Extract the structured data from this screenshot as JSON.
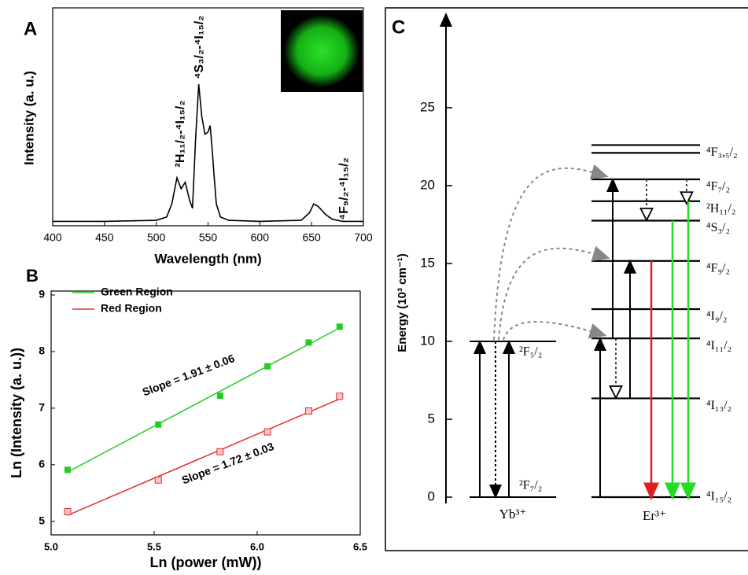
{
  "chart_data": [
    {
      "type": "line",
      "panel": "A",
      "x_label": "Wavelength (nm)",
      "y_label": "Intensity (a. u.)",
      "x": [
        400,
        450,
        500,
        510,
        515,
        520,
        524,
        528,
        532,
        535,
        538,
        541,
        544,
        547,
        550,
        552,
        554,
        556,
        558,
        562,
        570,
        600,
        640,
        648,
        652,
        656,
        660,
        664,
        670,
        680,
        700
      ],
      "values": [
        2,
        2,
        2.5,
        4,
        10,
        22,
        17,
        20,
        12,
        8,
        40,
        65,
        50,
        42,
        43,
        46,
        35,
        22,
        10,
        4,
        2.5,
        2,
        2.5,
        6,
        10,
        9,
        7,
        5,
        3,
        2,
        2
      ],
      "color": "#000000",
      "xlim": [
        400,
        700
      ],
      "xticks": [
        400,
        450,
        500,
        550,
        600,
        650,
        700
      ],
      "ylim": [
        0,
        100
      ],
      "annotations": [
        "²H₁₁/₂-⁴I₁₅/₂",
        "⁴S₃/₂-⁴I₁₅/₂",
        "⁴F₉/₂-⁴I₁₅/₂"
      ]
    },
    {
      "type": "scatter",
      "panel": "B",
      "x_label": "Ln (power (mW))",
      "y_label": "Ln (Intensity (a. u.))",
      "series": [
        {
          "name": "Green Region",
          "color": "#22cc22",
          "x": [
            5.08,
            5.52,
            5.82,
            6.05,
            6.25,
            6.4
          ],
          "values": [
            5.91,
            6.71,
            7.22,
            7.74,
            8.16,
            8.44
          ]
        },
        {
          "name": "Red Region",
          "color": "#e03030",
          "x": [
            5.08,
            5.52,
            5.82,
            6.05,
            6.25,
            6.4
          ],
          "values": [
            5.17,
            5.73,
            6.23,
            6.58,
            6.95,
            7.21
          ]
        }
      ],
      "annotations": [
        "Slope = 1.91 ± 0.06",
        "Slope = 1.72 ± 0.03"
      ],
      "xlim": [
        5.0,
        6.5
      ],
      "xticks": [
        {
          "value": 5,
          "label": "5.0"
        },
        5.5,
        {
          "value": 6,
          "label": "6.0"
        },
        6.5
      ],
      "ylim": [
        4.76,
        9.07
      ],
      "yticks": [
        5,
        6,
        7,
        8,
        9
      ],
      "legend": "top-left"
    },
    {
      "type": "energy_levels",
      "panel": "C",
      "y_label": "Energy (10³ cm⁻¹)",
      "ylim": [
        0,
        30.5
      ],
      "yticks": [
        0,
        5,
        10,
        15,
        20,
        25
      ],
      "ions": [
        "Yb³⁺",
        "Er³⁺"
      ],
      "yb_levels": {
        "labels": [
          "²F₅/₂",
          "²F₇/₂"
        ],
        "values": [
          10,
          0
        ]
      },
      "er_levels": {
        "labels": [
          "⁴F₃,₅/₂",
          null,
          "⁴F₇/₂",
          "²H₁₁/₂",
          "⁴S₃/₂",
          "⁴F₉/₂",
          "⁴I₉/₂",
          "⁴I₁₁/₂",
          "⁴I₁₃/₂",
          "⁴I₁₅/₂"
        ],
        "values": [
          22.6,
          22.1,
          20.4,
          19,
          17.75,
          15.16,
          12.07,
          10.19,
          6.34,
          0
        ]
      }
    }
  ]
}
